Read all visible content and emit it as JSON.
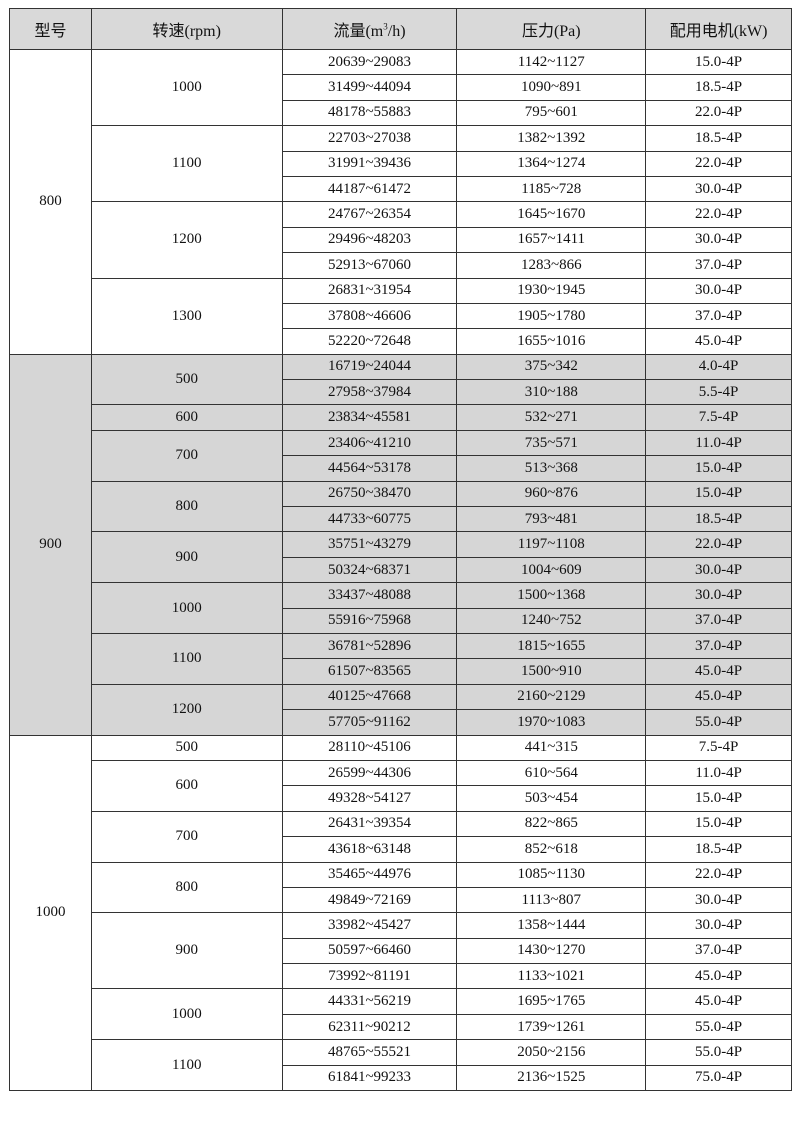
{
  "header": {
    "model": "型号",
    "speed": "转速(rpm)",
    "flow_prefix": "流量(m",
    "flow_sup": "3",
    "flow_suffix": "/h)",
    "pressure": "压力(Pa)",
    "motor": "配用电机(kW)"
  },
  "colors": {
    "header_bg": "#d9d9d9",
    "shaded_bg": "#d6d6d6",
    "border": "#333333"
  },
  "groups": [
    {
      "model": "800",
      "shaded": false,
      "speeds": [
        {
          "rpm": "1000",
          "rows": [
            [
              "20639~29083",
              "1142~1127",
              "15.0-4P"
            ],
            [
              "31499~44094",
              "1090~891",
              "18.5-4P"
            ],
            [
              "48178~55883",
              "795~601",
              "22.0-4P"
            ]
          ]
        },
        {
          "rpm": "1100",
          "rows": [
            [
              "22703~27038",
              "1382~1392",
              "18.5-4P"
            ],
            [
              "31991~39436",
              "1364~1274",
              "22.0-4P"
            ],
            [
              "44187~61472",
              "1185~728",
              "30.0-4P"
            ]
          ]
        },
        {
          "rpm": "1200",
          "rows": [
            [
              "24767~26354",
              "1645~1670",
              "22.0-4P"
            ],
            [
              "29496~48203",
              "1657~1411",
              "30.0-4P"
            ],
            [
              "52913~67060",
              "1283~866",
              "37.0-4P"
            ]
          ]
        },
        {
          "rpm": "1300",
          "rows": [
            [
              "26831~31954",
              "1930~1945",
              "30.0-4P"
            ],
            [
              "37808~46606",
              "1905~1780",
              "37.0-4P"
            ],
            [
              "52220~72648",
              "1655~1016",
              "45.0-4P"
            ]
          ]
        }
      ]
    },
    {
      "model": "900",
      "shaded": true,
      "speeds": [
        {
          "rpm": "500",
          "rows": [
            [
              "16719~24044",
              "375~342",
              "4.0-4P"
            ],
            [
              "27958~37984",
              "310~188",
              "5.5-4P"
            ]
          ]
        },
        {
          "rpm": "600",
          "rows": [
            [
              "23834~45581",
              "532~271",
              "7.5-4P"
            ]
          ]
        },
        {
          "rpm": "700",
          "rows": [
            [
              "23406~41210",
              "735~571",
              "11.0-4P"
            ],
            [
              "44564~53178",
              "513~368",
              "15.0-4P"
            ]
          ]
        },
        {
          "rpm": "800",
          "rows": [
            [
              "26750~38470",
              "960~876",
              "15.0-4P"
            ],
            [
              "44733~60775",
              "793~481",
              "18.5-4P"
            ]
          ]
        },
        {
          "rpm": "900",
          "rows": [
            [
              "35751~43279",
              "1197~1108",
              "22.0-4P"
            ],
            [
              "50324~68371",
              "1004~609",
              "30.0-4P"
            ]
          ]
        },
        {
          "rpm": "1000",
          "rows": [
            [
              "33437~48088",
              "1500~1368",
              "30.0-4P"
            ],
            [
              "55916~75968",
              "1240~752",
              "37.0-4P"
            ]
          ]
        },
        {
          "rpm": "1100",
          "rows": [
            [
              "36781~52896",
              "1815~1655",
              "37.0-4P"
            ],
            [
              "61507~83565",
              "1500~910",
              "45.0-4P"
            ]
          ]
        },
        {
          "rpm": "1200",
          "rows": [
            [
              "40125~47668",
              "2160~2129",
              "45.0-4P"
            ],
            [
              "57705~91162",
              "1970~1083",
              "55.0-4P"
            ]
          ]
        }
      ]
    },
    {
      "model": "1000",
      "shaded": false,
      "speeds": [
        {
          "rpm": "500",
          "rows": [
            [
              "28110~45106",
              "441~315",
              "7.5-4P"
            ]
          ]
        },
        {
          "rpm": "600",
          "rows": [
            [
              "26599~44306",
              "610~564",
              "11.0-4P"
            ],
            [
              "49328~54127",
              "503~454",
              "15.0-4P"
            ]
          ]
        },
        {
          "rpm": "700",
          "rows": [
            [
              "26431~39354",
              "822~865",
              "15.0-4P"
            ],
            [
              "43618~63148",
              "852~618",
              "18.5-4P"
            ]
          ]
        },
        {
          "rpm": "800",
          "rows": [
            [
              "35465~44976",
              "1085~1130",
              "22.0-4P"
            ],
            [
              "49849~72169",
              "1113~807",
              "30.0-4P"
            ]
          ]
        },
        {
          "rpm": "900",
          "rows": [
            [
              "33982~45427",
              "1358~1444",
              "30.0-4P"
            ],
            [
              "50597~66460",
              "1430~1270",
              "37.0-4P"
            ],
            [
              "73992~81191",
              "1133~1021",
              "45.0-4P"
            ]
          ]
        },
        {
          "rpm": "1000",
          "rows": [
            [
              "44331~56219",
              "1695~1765",
              "45.0-4P"
            ],
            [
              "62311~90212",
              "1739~1261",
              "55.0-4P"
            ]
          ]
        },
        {
          "rpm": "1100",
          "rows": [
            [
              "48765~55521",
              "2050~2156",
              "55.0-4P"
            ],
            [
              "61841~99233",
              "2136~1525",
              "75.0-4P"
            ]
          ]
        }
      ]
    }
  ]
}
